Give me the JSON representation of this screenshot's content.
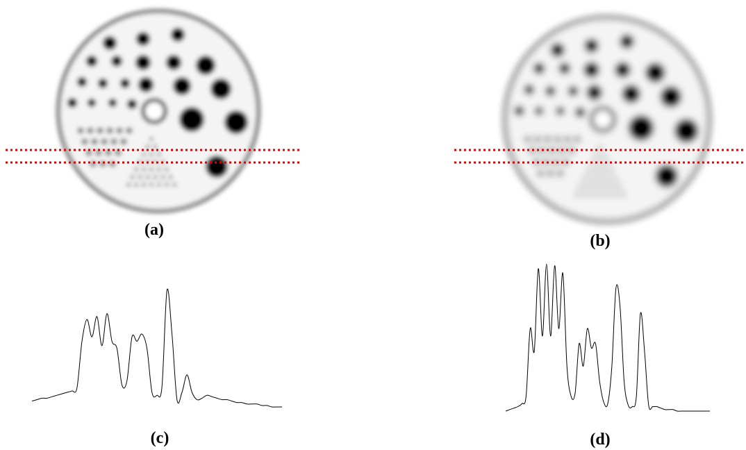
{
  "figure": {
    "panels": [
      {
        "id": "a",
        "label": "(a)",
        "kind": "phantom-image",
        "blur": 3.2
      },
      {
        "id": "b",
        "label": "(b)",
        "kind": "phantom-image",
        "blur": 4.8
      },
      {
        "id": "c",
        "label": "(c)",
        "kind": "line-profile"
      },
      {
        "id": "d",
        "label": "(d)",
        "kind": "line-profile"
      }
    ],
    "profile_line_color": "#e10000",
    "profile_line_style": "dotted double line",
    "phantom_color": "#000000",
    "background_color": "#ffffff"
  },
  "chart_data": [
    {
      "type": "line",
      "title": "",
      "xlabel": "",
      "ylabel": "",
      "axes_visible": false,
      "x": [
        0,
        2,
        4,
        6,
        8,
        10,
        12,
        14,
        16,
        18,
        20,
        22,
        24,
        26,
        28,
        30,
        32,
        34,
        36,
        38,
        40,
        42,
        44,
        46,
        48,
        50,
        52,
        54,
        56,
        58,
        60,
        62,
        64,
        66,
        68,
        70,
        72,
        74,
        76,
        78,
        80,
        82,
        84,
        86,
        88,
        90,
        92,
        94,
        96,
        98,
        100
      ],
      "series": [
        {
          "values": [
            0.04,
            0.05,
            0.06,
            0.06,
            0.07,
            0.08,
            0.09,
            0.1,
            0.11,
            0.13,
            0.45,
            0.6,
            0.48,
            0.62,
            0.42,
            0.64,
            0.45,
            0.4,
            0.15,
            0.18,
            0.48,
            0.45,
            0.5,
            0.4,
            0.1,
            0.08,
            0.14,
            0.8,
            0.5,
            0.05,
            0.1,
            0.22,
            0.1,
            0.05,
            0.06,
            0.08,
            0.07,
            0.06,
            0.05,
            0.05,
            0.04,
            0.03,
            0.03,
            0.02,
            0.02,
            0.02,
            0.01,
            0.01,
            0.0,
            0.0,
            0.0
          ]
        }
      ]
    },
    {
      "type": "line",
      "title": "",
      "xlabel": "",
      "ylabel": "",
      "axes_visible": false,
      "x": [
        0,
        2,
        4,
        6,
        8,
        10,
        12,
        14,
        16,
        18,
        20,
        22,
        24,
        26,
        28,
        30,
        32,
        34,
        36,
        38,
        40,
        42,
        44,
        46,
        48,
        50,
        52,
        54,
        56,
        58,
        60,
        62,
        64,
        66,
        68,
        70,
        72,
        74,
        76,
        78,
        80,
        82,
        84,
        86,
        88,
        90,
        92,
        94,
        96,
        98,
        100
      ],
      "series": [
        {
          "values": [
            0.0,
            0.01,
            0.02,
            0.03,
            0.05,
            0.1,
            0.55,
            0.4,
            0.95,
            0.5,
            0.98,
            0.5,
            0.97,
            0.55,
            0.92,
            0.3,
            0.1,
            0.12,
            0.45,
            0.3,
            0.55,
            0.42,
            0.45,
            0.2,
            0.06,
            0.05,
            0.3,
            0.82,
            0.7,
            0.2,
            0.04,
            0.03,
            0.1,
            0.65,
            0.4,
            0.04,
            0.03,
            0.03,
            0.02,
            0.01,
            0.01,
            0.01,
            0.0,
            0.0,
            0.0,
            0.0,
            0.0,
            0.0,
            0.0,
            0.0,
            0.0
          ]
        }
      ]
    }
  ]
}
